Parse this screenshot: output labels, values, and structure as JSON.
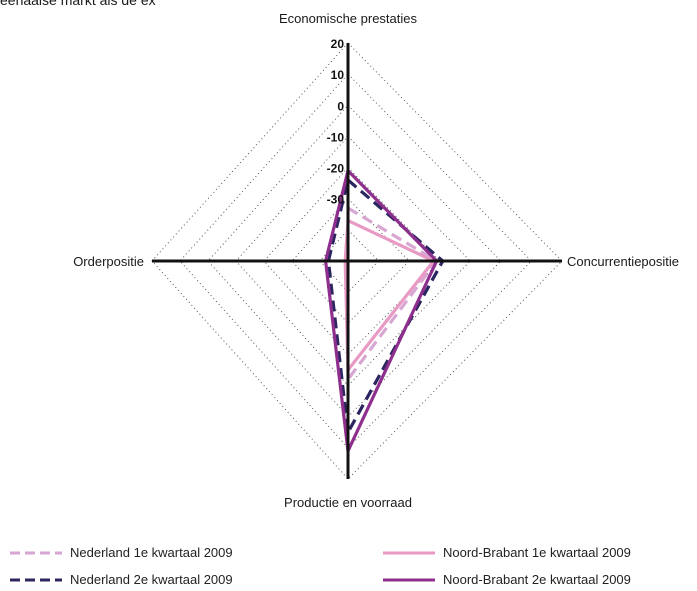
{
  "cropped_top_text": "eenaaise markt als de ex",
  "colors": {
    "nl_q1": "#d8a6d2",
    "nl_q2": "#2b2560",
    "nb_q1": "#e89ac4",
    "nb_q2": "#8e2f8e",
    "axis": "#111111",
    "grid": "#555555"
  },
  "chart_data": {
    "type": "radar",
    "axes": [
      "Economische prestaties",
      "Concurrentiepositie",
      "Productie en voorraad",
      "Orderpositie"
    ],
    "scale": {
      "min": -50,
      "max": 20,
      "ticks": [
        20,
        10,
        0,
        -10,
        -20,
        -30
      ],
      "grid_rings": 7,
      "grid_style": "dotted"
    },
    "legend_position": "bottom",
    "series": [
      {
        "name": "Nederland 1e kwartaal 2009",
        "style": "dashed",
        "color": "#d8a6d2",
        "values": [
          -33,
          -21,
          -12,
          -50
        ]
      },
      {
        "name": "Nederland 2e kwartaal 2009",
        "style": "dashed",
        "color": "#2b2560",
        "values": [
          -24,
          -19,
          5,
          -43
        ]
      },
      {
        "name": "Noord-Brabant 1e kwartaal 2009",
        "style": "solid",
        "color": "#e89ac4",
        "values": [
          -37,
          -22,
          -15,
          -49
        ]
      },
      {
        "name": "Noord-Brabant 2e kwartaal 2009",
        "style": "solid",
        "color": "#8e2f8e",
        "values": [
          -21,
          -21,
          11,
          -42
        ]
      }
    ]
  }
}
